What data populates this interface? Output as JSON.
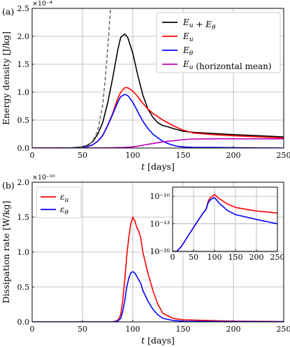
{
  "chart_data": [
    {
      "type": "line",
      "panel_label": "(a)",
      "xlabel": "t [days]",
      "ylabel": "Energy density [J/kg]",
      "y_multiplier": "×10⁻⁴",
      "xlim": [
        0,
        250
      ],
      "ylim": [
        0,
        2.5
      ],
      "x_ticks": [
        "0",
        "50",
        "100",
        "150",
        "200",
        "250"
      ],
      "y_ticks": [
        "0.0",
        "0.5",
        "1.0",
        "1.5",
        "2.0",
        "2.5"
      ],
      "grid": true,
      "legend_position": "top-right",
      "series": [
        {
          "name": "E_u + E_θ",
          "color": "#000000",
          "x": [
            0,
            40,
            50,
            55,
            60,
            65,
            70,
            75,
            80,
            85,
            88,
            92,
            95,
            100,
            105,
            110,
            115,
            120,
            125,
            130,
            135,
            140,
            150,
            160,
            180,
            200,
            250
          ],
          "y": [
            0,
            0.005,
            0.02,
            0.05,
            0.11,
            0.24,
            0.45,
            0.8,
            1.25,
            1.75,
            1.98,
            2.04,
            1.98,
            1.7,
            1.3,
            0.95,
            0.7,
            0.55,
            0.45,
            0.4,
            0.38,
            0.35,
            0.3,
            0.28,
            0.26,
            0.24,
            0.2
          ]
        },
        {
          "name": "E_u",
          "color": "#ff0000",
          "x": [
            0,
            40,
            50,
            55,
            60,
            65,
            70,
            75,
            80,
            85,
            88,
            92,
            95,
            100,
            105,
            110,
            115,
            120,
            125,
            130,
            135,
            140,
            150,
            160,
            180,
            200,
            250
          ],
          "y": [
            0,
            0.003,
            0.01,
            0.025,
            0.055,
            0.12,
            0.22,
            0.4,
            0.62,
            0.88,
            1.0,
            1.08,
            1.08,
            1.02,
            0.92,
            0.8,
            0.7,
            0.62,
            0.56,
            0.5,
            0.45,
            0.4,
            0.32,
            0.27,
            0.24,
            0.22,
            0.18
          ]
        },
        {
          "name": "E_θ",
          "color": "#0000ff",
          "x": [
            0,
            40,
            50,
            55,
            60,
            65,
            70,
            75,
            80,
            85,
            88,
            92,
            95,
            100,
            105,
            110,
            115,
            120,
            125,
            130,
            135,
            140,
            145,
            150,
            160,
            180,
            200,
            250
          ],
          "y": [
            0,
            0.003,
            0.01,
            0.025,
            0.055,
            0.12,
            0.22,
            0.4,
            0.6,
            0.82,
            0.92,
            0.96,
            0.94,
            0.82,
            0.65,
            0.48,
            0.35,
            0.25,
            0.18,
            0.12,
            0.08,
            0.05,
            0.03,
            0.02,
            0.01,
            0.01,
            0.005,
            0.0
          ]
        },
        {
          "name": "E_u (horizontal mean)",
          "color": "#bf00bf",
          "x": [
            0,
            50,
            60,
            70,
            80,
            90,
            100,
            110,
            120,
            130,
            140,
            150,
            160,
            180,
            200,
            250
          ],
          "y": [
            0,
            0,
            0.001,
            0.003,
            0.006,
            0.01,
            0.02,
            0.05,
            0.08,
            0.11,
            0.13,
            0.15,
            0.16,
            0.165,
            0.165,
            0.165
          ]
        },
        {
          "name": "",
          "color": "#666666",
          "dashed": true,
          "x": [
            30,
            40,
            50,
            55,
            60,
            65,
            70,
            73,
            76,
            78
          ],
          "y": [
            0.0005,
            0.003,
            0.015,
            0.04,
            0.12,
            0.3,
            0.75,
            1.3,
            2.0,
            2.5
          ]
        }
      ]
    },
    {
      "type": "line",
      "panel_label": "(b)",
      "xlabel": "t [days]",
      "ylabel": "Dissipation rate [W/kg]",
      "y_multiplier": "×10⁻¹⁰",
      "xlim": [
        0,
        250
      ],
      "ylim": [
        0,
        2.0
      ],
      "x_ticks": [
        "0",
        "50",
        "100",
        "150",
        "200",
        "250"
      ],
      "y_ticks": [
        "0.0",
        "0.5",
        "1.0",
        "1.5",
        "2.0"
      ],
      "grid": true,
      "legend_position": "top-left",
      "series": [
        {
          "name": "ε_u",
          "color": "#ff0000",
          "x": [
            0,
            80,
            85,
            88,
            90,
            92,
            94,
            96,
            98,
            100,
            102,
            104,
            106,
            108,
            110,
            115,
            120,
            125,
            130,
            140,
            150,
            200,
            250
          ],
          "y": [
            0,
            0,
            0.02,
            0.1,
            0.3,
            0.6,
            0.95,
            1.2,
            1.4,
            1.5,
            1.45,
            1.35,
            1.3,
            1.2,
            1.0,
            0.7,
            0.45,
            0.25,
            0.12,
            0.05,
            0.03,
            0.01,
            0.005
          ]
        },
        {
          "name": "ε_θ",
          "color": "#0000ff",
          "x": [
            0,
            80,
            85,
            88,
            90,
            92,
            94,
            96,
            98,
            100,
            102,
            104,
            106,
            108,
            110,
            115,
            120,
            125,
            130,
            140,
            150,
            200,
            250
          ],
          "y": [
            0,
            0,
            0.01,
            0.05,
            0.15,
            0.3,
            0.5,
            0.62,
            0.7,
            0.72,
            0.7,
            0.65,
            0.6,
            0.55,
            0.45,
            0.3,
            0.18,
            0.1,
            0.05,
            0.02,
            0.01,
            0.005,
            0.002
          ]
        }
      ]
    },
    {
      "type": "line",
      "panel_label": "",
      "yscale": "log",
      "xlim": [
        0,
        250
      ],
      "ylim": [
        1e-16,
        1e-09
      ],
      "x_ticks": [
        "0",
        "50",
        "100",
        "150",
        "200",
        "250"
      ],
      "y_ticks": [
        "10⁻¹⁶",
        "10⁻¹³",
        "10⁻¹⁰"
      ],
      "grid": true,
      "series": [
        {
          "name": "ε_u",
          "color": "#ff0000",
          "x": [
            0,
            10,
            20,
            30,
            40,
            50,
            60,
            70,
            80,
            85,
            90,
            95,
            100,
            105,
            110,
            120,
            130,
            150,
            200,
            250
          ],
          "y": [
            1e-16,
            1e-16,
            3e-16,
            1.5e-15,
            8e-15,
            4e-14,
            2e-13,
            1e-12,
            4e-12,
            3e-11,
            7e-11,
            1e-10,
            1.5e-10,
            1e-10,
            6e-11,
            3e-11,
            1.5e-11,
            6e-12,
            2.5e-12,
            1.5e-12
          ]
        },
        {
          "name": "ε_θ",
          "color": "#0000ff",
          "x": [
            0,
            10,
            20,
            30,
            40,
            50,
            60,
            70,
            80,
            85,
            90,
            95,
            100,
            105,
            110,
            120,
            130,
            150,
            200,
            250
          ],
          "y": [
            1e-16,
            1e-16,
            3e-16,
            1.5e-15,
            8e-15,
            4e-14,
            2e-13,
            1e-12,
            4e-12,
            2e-11,
            4e-11,
            6e-11,
            7e-11,
            4e-11,
            2e-11,
            8e-12,
            3e-12,
            1e-12,
            3e-13,
            1e-13
          ]
        }
      ]
    }
  ]
}
